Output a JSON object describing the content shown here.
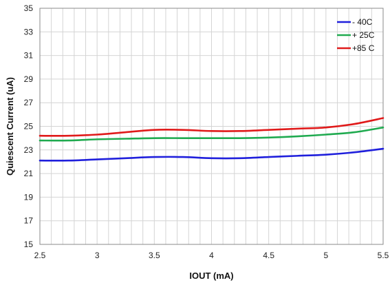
{
  "chart_data": {
    "type": "line",
    "xlabel": "IOUT (mA)",
    "ylabel": "Quiescent Current (uA)",
    "xlim": [
      2.5,
      5.5
    ],
    "ylim": [
      15,
      35
    ],
    "x_ticks": [
      "2.5",
      "3",
      "3.5",
      "4",
      "4.5",
      "5",
      "5.5"
    ],
    "y_ticks": [
      "15",
      "17",
      "19",
      "21",
      "23",
      "25",
      "27",
      "29",
      "31",
      "33",
      "35"
    ],
    "grid": true,
    "legend_position": "top-right",
    "x": [
      2.5,
      2.75,
      3.0,
      3.25,
      3.5,
      3.75,
      4.0,
      4.25,
      4.5,
      4.75,
      5.0,
      5.25,
      5.5
    ],
    "series": [
      {
        "name": "- 40C",
        "color": "#1f1fdc",
        "values": [
          22.1,
          22.1,
          22.2,
          22.3,
          22.4,
          22.4,
          22.3,
          22.3,
          22.4,
          22.5,
          22.6,
          22.8,
          23.1
        ]
      },
      {
        "name": "+ 25C",
        "color": "#1faa4f",
        "values": [
          23.8,
          23.8,
          23.9,
          23.95,
          24.0,
          24.0,
          24.0,
          24.0,
          24.05,
          24.15,
          24.3,
          24.5,
          24.9
        ]
      },
      {
        "name": "+85 C",
        "color": "#e01a1a",
        "values": [
          24.2,
          24.2,
          24.3,
          24.5,
          24.7,
          24.7,
          24.6,
          24.6,
          24.7,
          24.8,
          24.9,
          25.2,
          25.7
        ]
      }
    ]
  }
}
